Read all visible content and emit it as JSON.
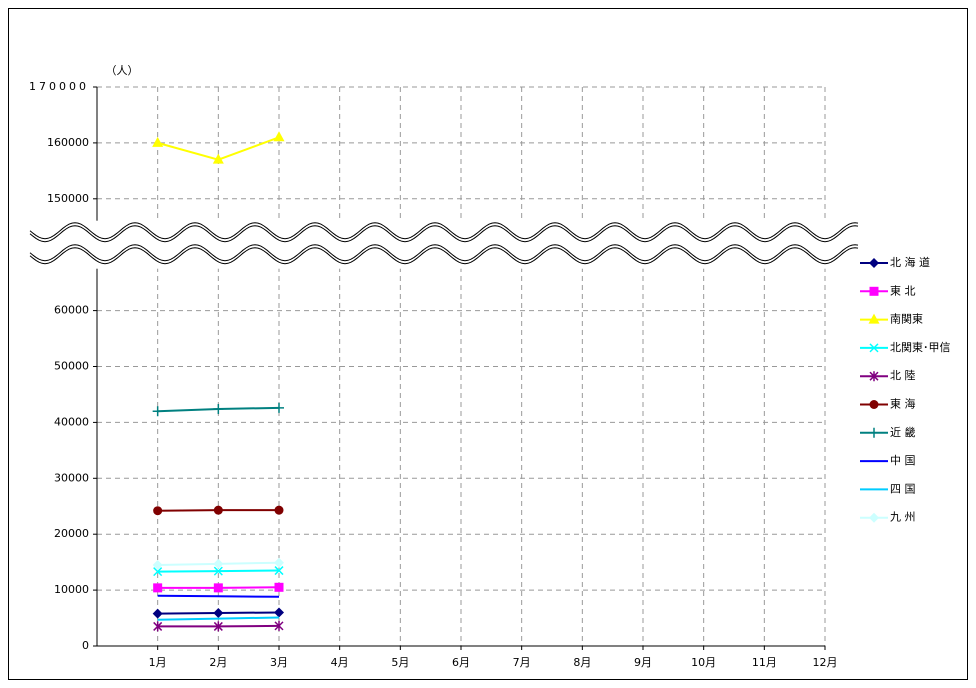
{
  "chart_data": {
    "type": "line",
    "y_unit_label": "（人）",
    "categories": [
      "1月",
      "2月",
      "3月",
      "4月",
      "5月",
      "6月",
      "7月",
      "8月",
      "9月",
      "10月",
      "11月",
      "12月"
    ],
    "ylim": [
      0,
      170000
    ],
    "y_break": [
      70000,
      140000
    ],
    "yticks": [
      0,
      10000,
      20000,
      30000,
      40000,
      50000,
      60000,
      150000,
      160000,
      170000
    ],
    "grid": true,
    "legend": "right",
    "series": [
      {
        "name": "北 海 道",
        "color": "#000080",
        "marker": "diamond",
        "values": [
          5800,
          5900,
          6000,
          null,
          null,
          null,
          null,
          null,
          null,
          null,
          null,
          null
        ]
      },
      {
        "name": "東 北",
        "color": "#ff00ff",
        "marker": "square",
        "values": [
          10400,
          10400,
          10500,
          null,
          null,
          null,
          null,
          null,
          null,
          null,
          null,
          null
        ]
      },
      {
        "name": "南関東",
        "color": "#ffff00",
        "marker": "triangle",
        "values": [
          160000,
          157000,
          161000,
          null,
          null,
          null,
          null,
          null,
          null,
          null,
          null,
          null
        ]
      },
      {
        "name": "北関東･甲信",
        "color": "#00ffff",
        "marker": "x",
        "values": [
          13300,
          13400,
          13500,
          null,
          null,
          null,
          null,
          null,
          null,
          null,
          null,
          null
        ]
      },
      {
        "name": "北 陸",
        "color": "#800080",
        "marker": "asterisk",
        "values": [
          3500,
          3500,
          3600,
          null,
          null,
          null,
          null,
          null,
          null,
          null,
          null,
          null
        ]
      },
      {
        "name": "東 海",
        "color": "#800000",
        "marker": "circle",
        "values": [
          24200,
          24300,
          24300,
          null,
          null,
          null,
          null,
          null,
          null,
          null,
          null,
          null
        ]
      },
      {
        "name": "近 畿",
        "color": "#008080",
        "marker": "plus",
        "values": [
          42000,
          42400,
          42600,
          null,
          null,
          null,
          null,
          null,
          null,
          null,
          null,
          null
        ]
      },
      {
        "name": "中 国",
        "color": "#0000ff",
        "marker": "none",
        "values": [
          9000,
          8900,
          8800,
          null,
          null,
          null,
          null,
          null,
          null,
          null,
          null,
          null
        ]
      },
      {
        "name": "四 国",
        "color": "#00ccff",
        "marker": "none",
        "values": [
          4700,
          4900,
          5100,
          null,
          null,
          null,
          null,
          null,
          null,
          null,
          null,
          null
        ]
      },
      {
        "name": "九 州",
        "color": "#ccffff",
        "marker": "diamond",
        "values": [
          14500,
          14700,
          14900,
          null,
          null,
          null,
          null,
          null,
          null,
          null,
          null,
          null
        ]
      }
    ]
  }
}
